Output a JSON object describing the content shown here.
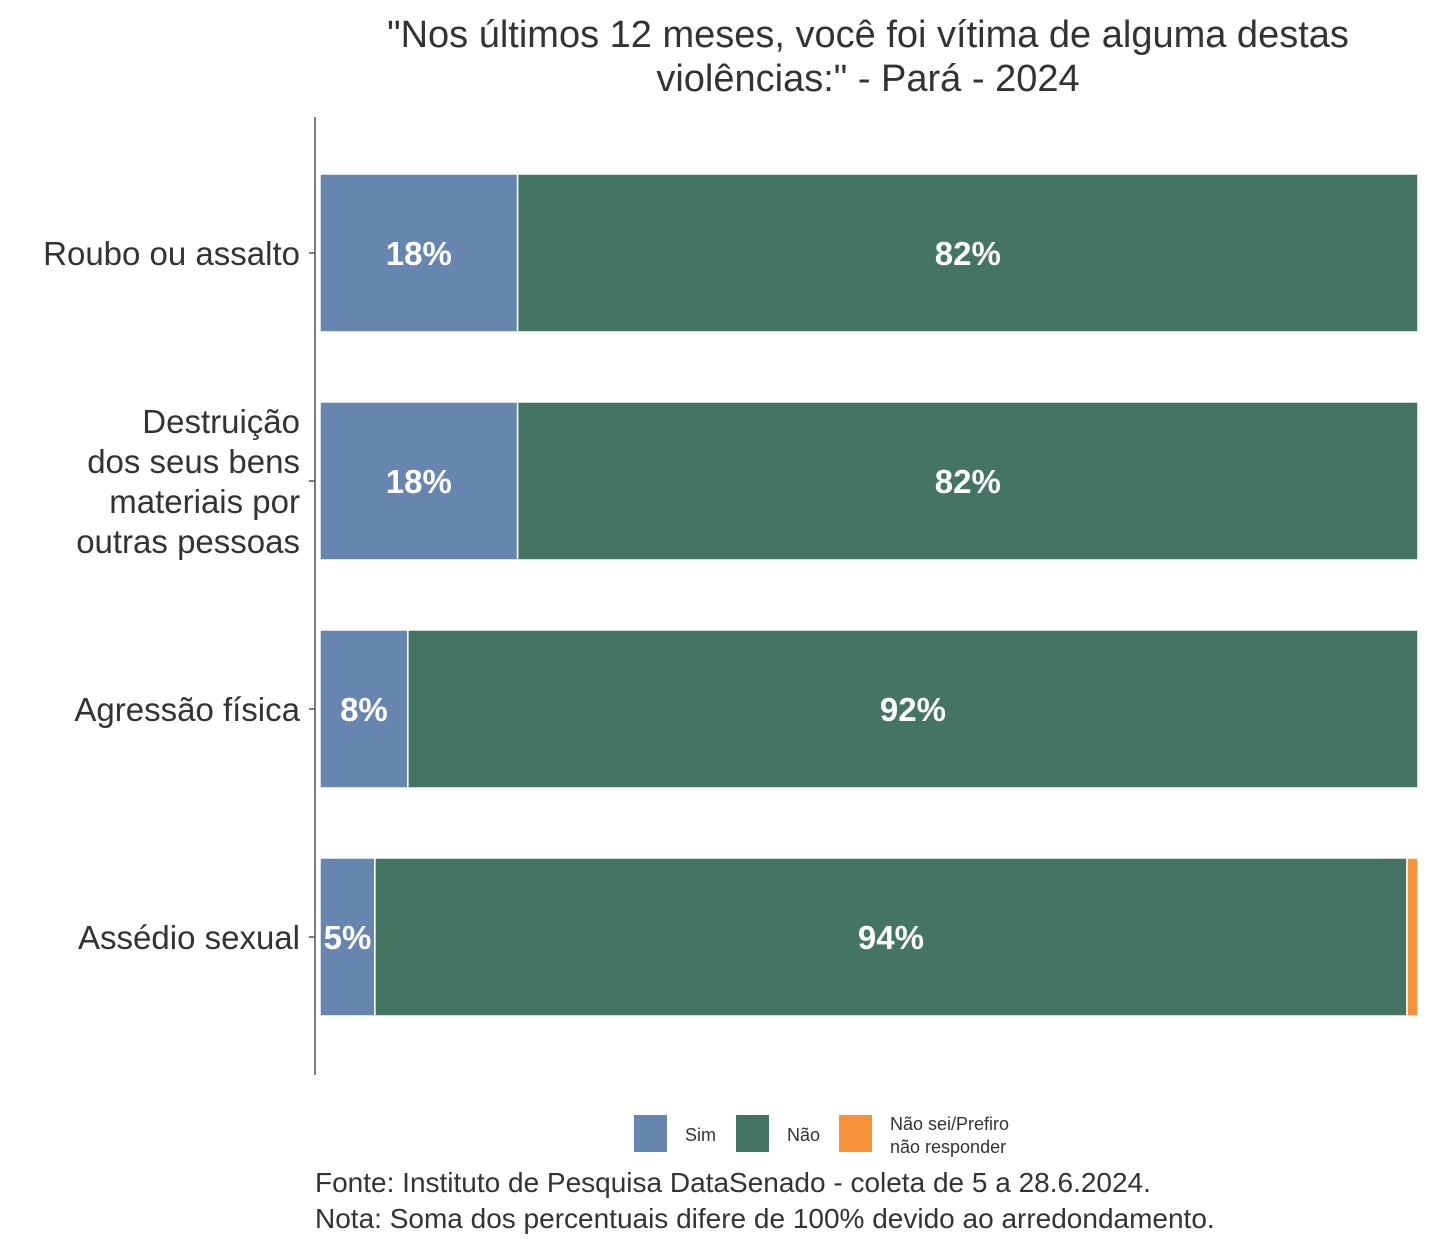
{
  "chart_data": {
    "type": "bar",
    "orientation": "horizontal",
    "stacked": true,
    "title": "\"Nos últimos 12 meses, você foi vítima de alguma destas violências:\" - Pará - 2024",
    "title_lines": [
      "\"Nos últimos 12 meses, você foi vítima de alguma destas",
      "violências:\" - Pará - 2024"
    ],
    "categories": [
      {
        "label": "Roubo ou assalto",
        "lines": [
          "Roubo ou assalto"
        ]
      },
      {
        "label": "Destruição dos seus bens materiais por outras pessoas",
        "lines": [
          "Destruição",
          "dos seus bens",
          "materiais por",
          "outras pessoas"
        ]
      },
      {
        "label": "Agressão física",
        "lines": [
          "Agressão física"
        ]
      },
      {
        "label": "Assédio sexual",
        "lines": [
          "Assédio sexual"
        ]
      }
    ],
    "series": [
      {
        "name": "Sim",
        "color": "#6686B0",
        "values": [
          18,
          18,
          8,
          5
        ],
        "labels": [
          "18%",
          "18%",
          "8%",
          "5%"
        ]
      },
      {
        "name": "Não",
        "color": "#447563",
        "values": [
          82,
          82,
          92,
          94
        ],
        "labels": [
          "82%",
          "82%",
          "92%",
          "94%"
        ]
      },
      {
        "name": "Não sei/Prefiro não responder",
        "color": "#F7923A",
        "values": [
          0,
          0,
          0,
          1
        ],
        "labels": [
          "",
          "",
          "",
          ""
        ]
      }
    ],
    "xlim": [
      0,
      100
    ],
    "grid": false,
    "legend": {
      "position": "bottom",
      "entries": [
        {
          "lines": [
            "Sim"
          ]
        },
        {
          "lines": [
            "Não"
          ]
        },
        {
          "lines": [
            "Não sei/Prefiro",
            "não responder"
          ]
        }
      ]
    },
    "caption": [
      "Fonte: Instituto de Pesquisa DataSenado - coleta de 5 a 28.6.2024.",
      "Nota: Soma dos percentuais difere de 100% devido ao arredondamento."
    ]
  }
}
